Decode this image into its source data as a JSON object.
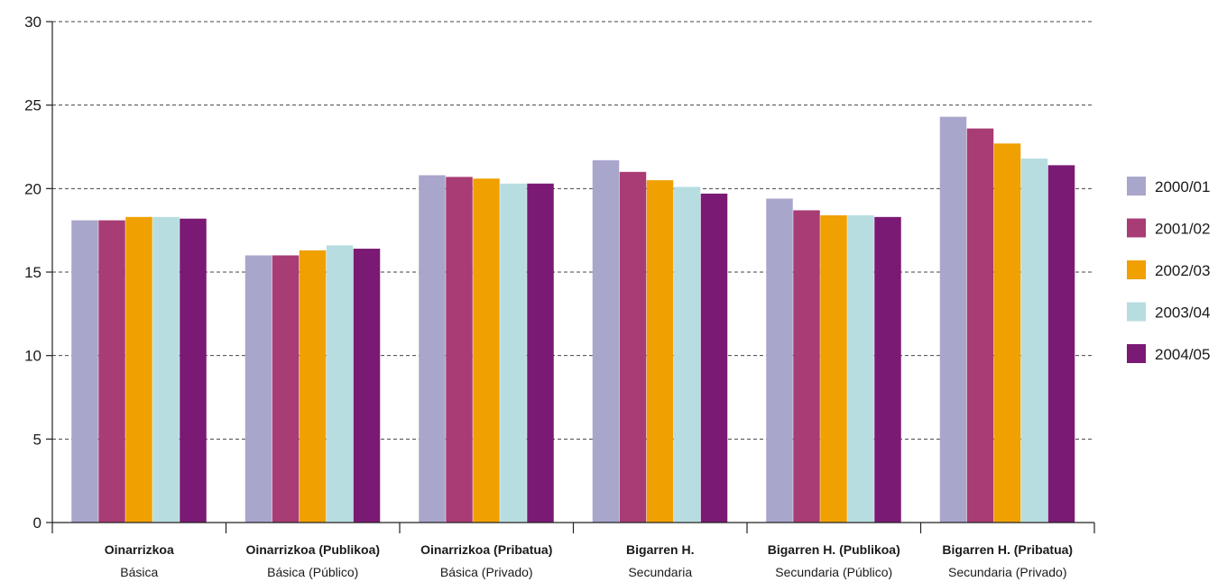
{
  "chart_data": {
    "type": "bar",
    "categories": [
      {
        "main": "Oinarrizkoa",
        "sub": "Básica"
      },
      {
        "main": "Oinarrizkoa (Publikoa)",
        "sub": "Básica (Público)"
      },
      {
        "main": "Oinarrizkoa (Pribatua)",
        "sub": "Básica (Privado)"
      },
      {
        "main": "Bigarren H.",
        "sub": "Secundaria"
      },
      {
        "main": "Bigarren H. (Publikoa)",
        "sub": "Secundaria (Público)"
      },
      {
        "main": "Bigarren H. (Pribatua)",
        "sub": "Secundaria (Privado)"
      }
    ],
    "series": [
      {
        "name": "2000/01",
        "color": "#a9a6cc",
        "values": [
          18.1,
          16.0,
          20.8,
          21.7,
          19.4,
          24.3
        ]
      },
      {
        "name": "2001/02",
        "color": "#a83c74",
        "values": [
          18.1,
          16.0,
          20.7,
          21.0,
          18.7,
          23.6
        ]
      },
      {
        "name": "2002/03",
        "color": "#f0a000",
        "values": [
          18.3,
          16.3,
          20.6,
          20.5,
          18.4,
          22.7
        ]
      },
      {
        "name": "2003/04",
        "color": "#b8dde0",
        "values": [
          18.3,
          16.6,
          20.3,
          20.1,
          18.4,
          21.8
        ]
      },
      {
        "name": "2004/05",
        "color": "#7a1a74",
        "values": [
          18.2,
          16.4,
          20.3,
          19.7,
          18.3,
          21.4
        ]
      }
    ],
    "yticks": [
      "0",
      "5",
      "10",
      "15",
      "20",
      "25",
      "30"
    ],
    "ylim": [
      0,
      30
    ],
    "grid": true,
    "legend_position": "right",
    "title": "",
    "xlabel": "",
    "ylabel": ""
  }
}
